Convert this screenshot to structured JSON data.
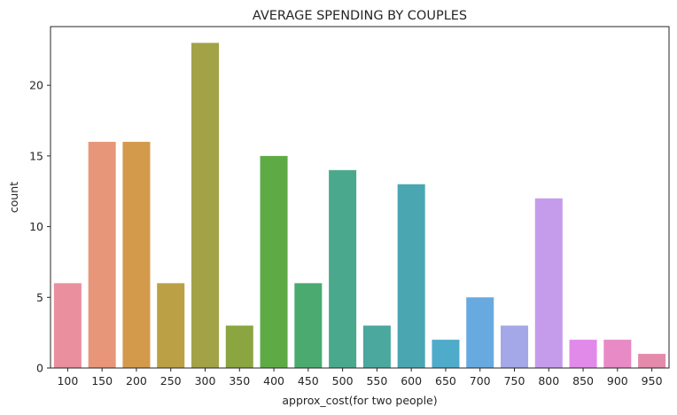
{
  "chart_data": {
    "type": "bar",
    "title": "AVERAGE SPENDING BY COUPLES",
    "xlabel": "approx_cost(for two people)",
    "ylabel": "count",
    "categories": [
      "100",
      "150",
      "200",
      "250",
      "300",
      "350",
      "400",
      "450",
      "500",
      "550",
      "600",
      "650",
      "700",
      "750",
      "800",
      "850",
      "900",
      "950"
    ],
    "values": [
      6,
      16,
      16,
      6,
      23,
      3,
      15,
      6,
      14,
      3,
      13,
      2,
      5,
      3,
      12,
      2,
      2,
      1
    ],
    "colors": [
      "#ea8f9e",
      "#e8967a",
      "#d39a4c",
      "#bca045",
      "#a2a247",
      "#8ba641",
      "#5eab45",
      "#4aaa70",
      "#4aa98d",
      "#4aa89f",
      "#4aa7b2",
      "#4fabca",
      "#68aadf",
      "#a5a8e8",
      "#c59ceb",
      "#e18ae9",
      "#e88ac6",
      "#e48bab"
    ],
    "yticks": [
      0,
      5,
      10,
      15,
      20
    ],
    "ylim": [
      0,
      24.15
    ],
    "grid": false
  }
}
